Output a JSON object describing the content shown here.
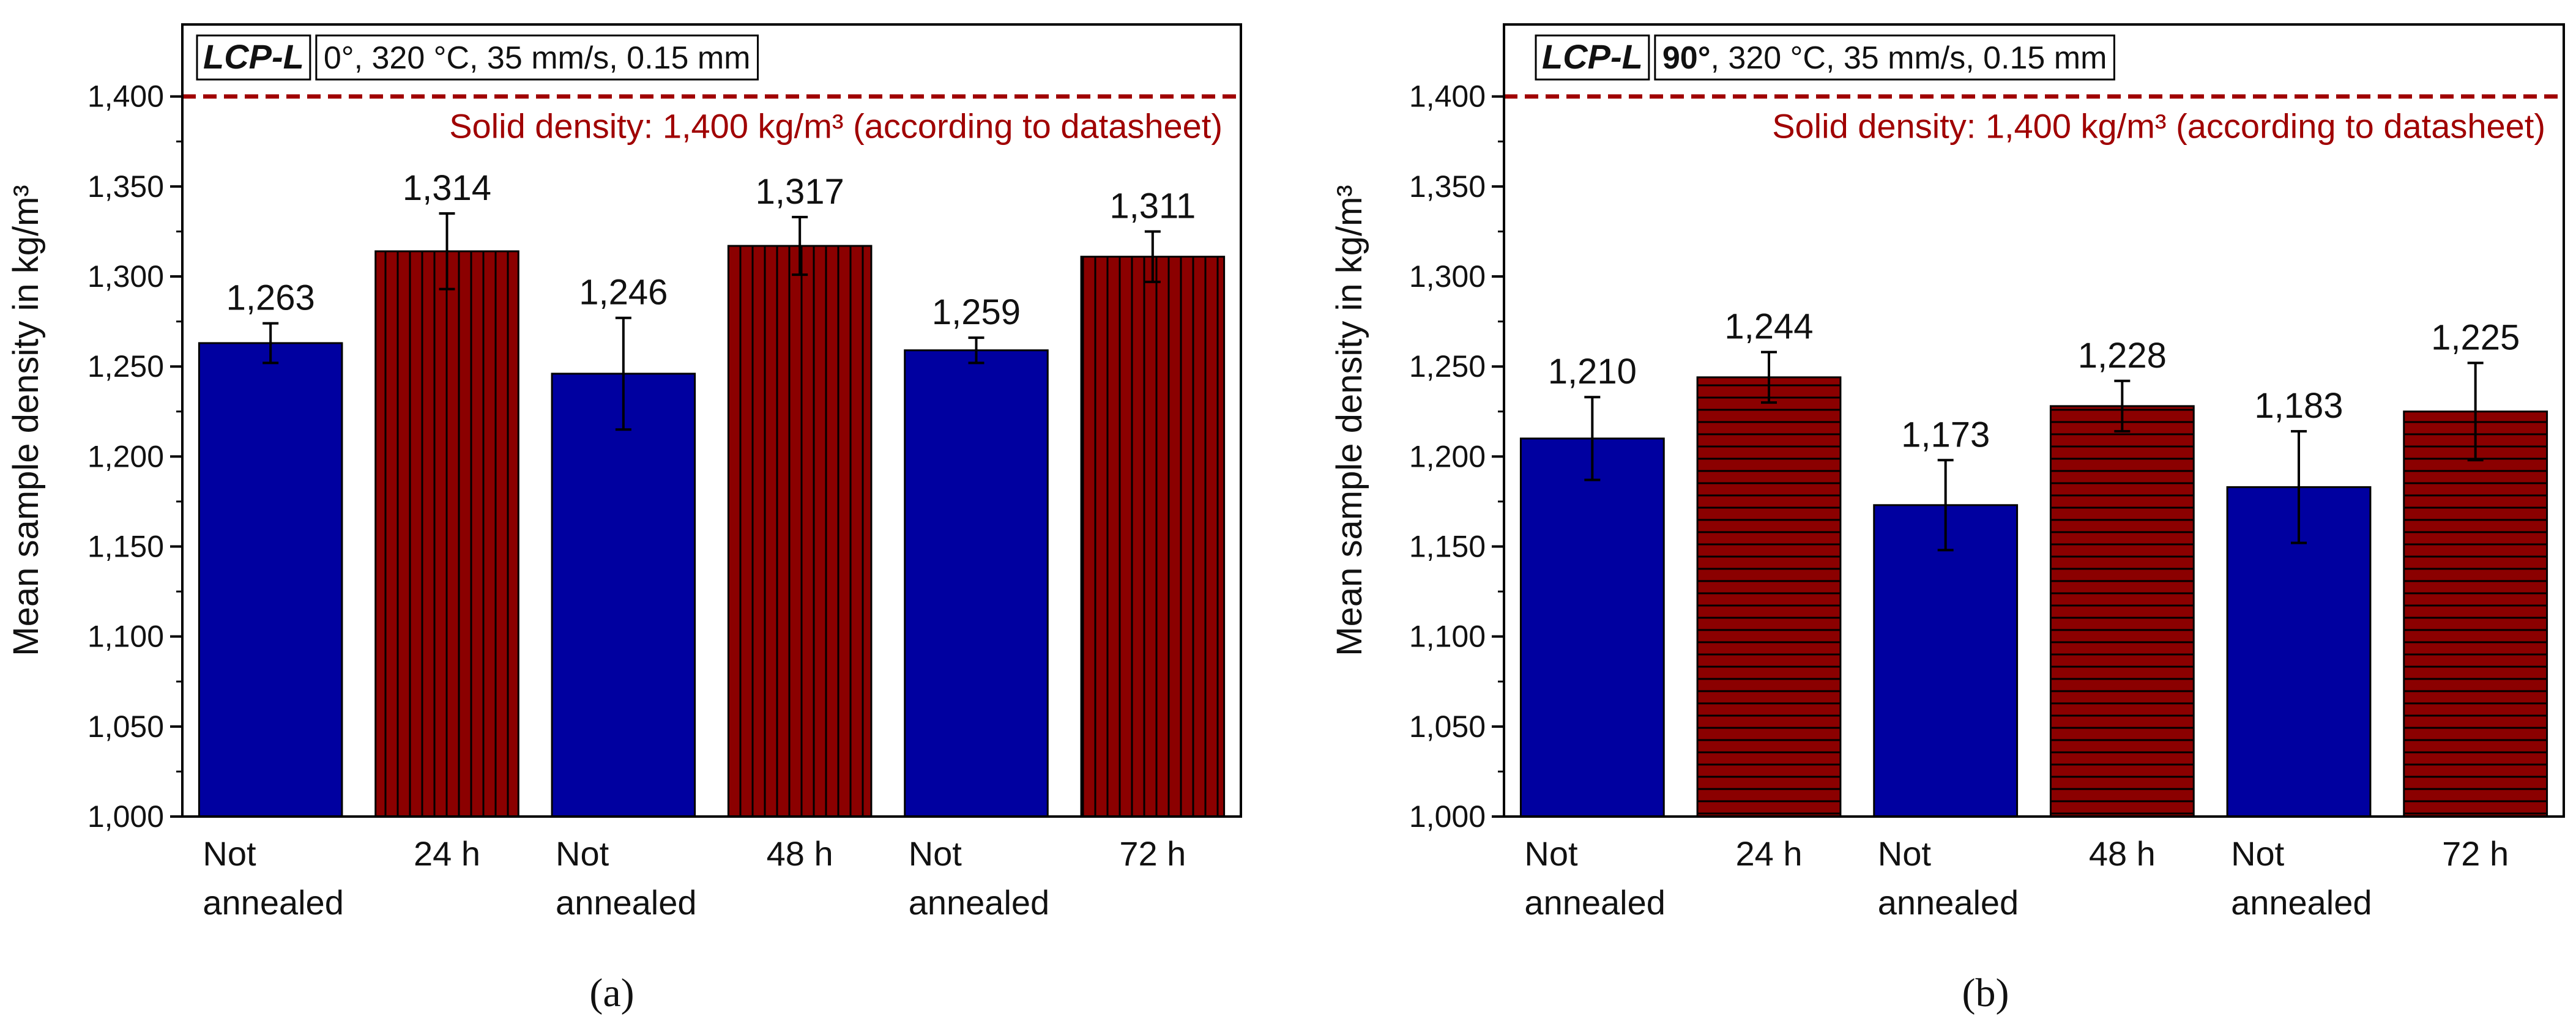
{
  "chart_data": [
    {
      "type": "bar",
      "panel_label": "(a)",
      "panel_letter": "a",
      "title_material": "LCP-L",
      "title_orientation": "0°",
      "title_params": ", 320 °C, 35 mm/s, 0.15 mm",
      "ylabel": "Mean sample density in kg/m³",
      "xlabel": "",
      "ylim": [
        1000,
        1440
      ],
      "yticks": [
        1000,
        1050,
        1100,
        1150,
        1200,
        1250,
        1300,
        1350,
        1400
      ],
      "ytick_labels": [
        "1,000",
        "1,050",
        "1,100",
        "1,150",
        "1,200",
        "1,250",
        "1,300",
        "1,350",
        "1,400"
      ],
      "categories": [
        [
          "Not",
          "annealed"
        ],
        [
          "24 h"
        ],
        [
          "Not",
          "annealed"
        ],
        [
          "48 h"
        ],
        [
          "Not",
          "annealed"
        ],
        [
          "72 h"
        ]
      ],
      "values": [
        1263,
        1314,
        1246,
        1317,
        1259,
        1311
      ],
      "value_labels": [
        "1,263",
        "1,314",
        "1,246",
        "1,317",
        "1,259",
        "1,311"
      ],
      "error": [
        11,
        21,
        31,
        16,
        7,
        14
      ],
      "annealed": [
        false,
        true,
        false,
        true,
        false,
        true
      ],
      "hatch": "vertical",
      "reference_line": {
        "value": 1400,
        "label": "Solid density: 1,400 kg/m³ (according to datasheet)"
      }
    },
    {
      "type": "bar",
      "panel_label": "(b)",
      "panel_letter": "b",
      "title_material": "LCP-L",
      "title_orientation": "90°",
      "title_params": ", 320 °C, 35 mm/s, 0.15 mm",
      "ylabel": "Mean sample density in kg/m³",
      "xlabel": "",
      "ylim": [
        1000,
        1440
      ],
      "yticks": [
        1000,
        1050,
        1100,
        1150,
        1200,
        1250,
        1300,
        1350,
        1400
      ],
      "ytick_labels": [
        "1,000",
        "1,050",
        "1,100",
        "1,150",
        "1,200",
        "1,250",
        "1,300",
        "1,350",
        "1,400"
      ],
      "categories": [
        [
          "Not",
          "annealed"
        ],
        [
          "24 h"
        ],
        [
          "Not",
          "annealed"
        ],
        [
          "48 h"
        ],
        [
          "Not",
          "annealed"
        ],
        [
          "72 h"
        ]
      ],
      "values": [
        1210,
        1244,
        1173,
        1228,
        1183,
        1225
      ],
      "value_labels": [
        "1,210",
        "1,244",
        "1,173",
        "1,228",
        "1,183",
        "1,225"
      ],
      "error": [
        23,
        14,
        25,
        14,
        31,
        27
      ],
      "annealed": [
        false,
        true,
        false,
        true,
        false,
        true
      ],
      "hatch": "horizontal",
      "reference_line": {
        "value": 1400,
        "label": "Solid density: 1,400 kg/m³ (according to datasheet)"
      }
    }
  ],
  "colors": {
    "not_annealed_bar": "#0000a0",
    "annealed_bar": "#8b0000",
    "hatch_line": "#000000",
    "reference_line": "#a00000",
    "reference_text": "#a00000",
    "axis": "#000000"
  }
}
